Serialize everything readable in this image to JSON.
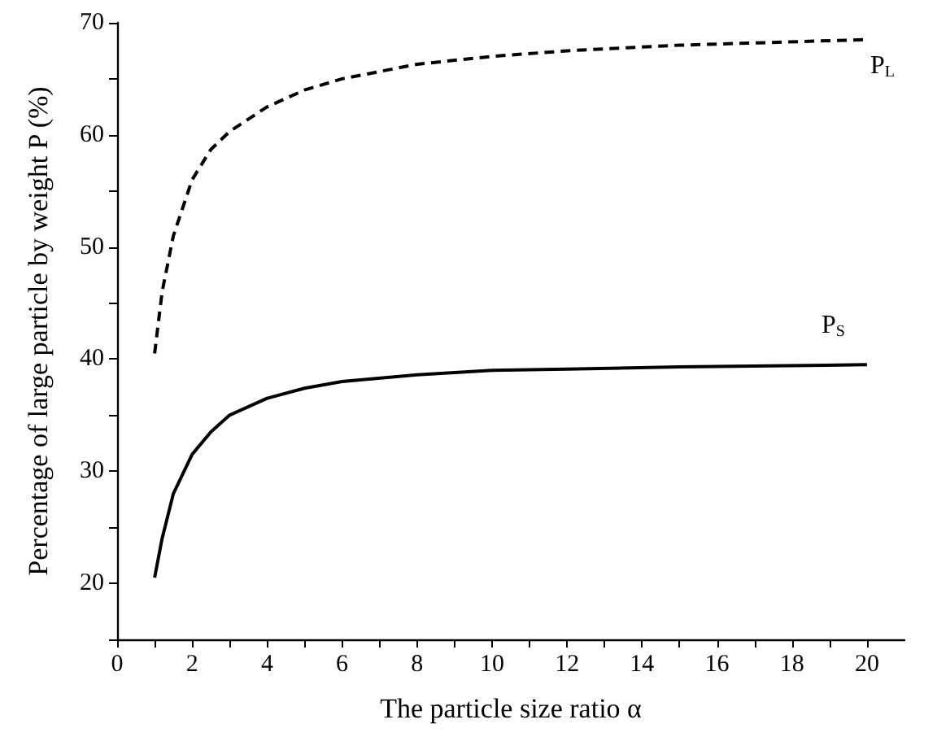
{
  "chart_data": {
    "type": "line",
    "xlabel": "The particle size ratio α",
    "ylabel": "Percentage of large particle by weight P (%)",
    "xlim": [
      0,
      21
    ],
    "ylim": [
      15,
      70
    ],
    "xticks": [
      0,
      {
        "value": 1,
        "label": null
      },
      2,
      {
        "value": 3,
        "label": null
      },
      4,
      {
        "value": 5,
        "label": null
      },
      6,
      {
        "value": 7,
        "label": null
      },
      8,
      {
        "value": 9,
        "label": null
      },
      10,
      {
        "value": 11,
        "label": null
      },
      12,
      {
        "value": 13,
        "label": null
      },
      14,
      {
        "value": 15,
        "label": null
      },
      16,
      {
        "value": 17,
        "label": null
      },
      18,
      {
        "value": 19,
        "label": null
      },
      20
    ],
    "yticks": [
      {
        "value": 15,
        "label": null
      },
      20,
      {
        "value": 25,
        "label": null
      },
      30,
      {
        "value": 35,
        "label": null
      },
      40,
      {
        "value": 45,
        "label": null
      },
      50,
      {
        "value": 55,
        "label": null
      },
      60,
      {
        "value": 65,
        "label": null
      },
      70
    ],
    "grid": false,
    "marker": "none",
    "series": [
      {
        "name": "P$_{L}$",
        "color": "#000000",
        "line_style": "dashed",
        "x": [
          1,
          1.2,
          1.5,
          2,
          2.5,
          3,
          4,
          5,
          6,
          8,
          10,
          12,
          15,
          20
        ],
        "values": [
          40.5,
          46,
          51,
          56,
          58.7,
          60.3,
          62.5,
          64,
          65,
          66.3,
          67,
          67.5,
          68,
          68.5
        ]
      },
      {
        "name": "P$_{S}$",
        "color": "#000000",
        "line_style": "solid",
        "x": [
          1,
          1.2,
          1.5,
          2,
          2.5,
          3,
          4,
          5,
          6,
          8,
          10,
          12,
          15,
          20
        ],
        "values": [
          20.5,
          24,
          28,
          31.5,
          33.5,
          35,
          36.5,
          37.4,
          38,
          38.6,
          39,
          39.1,
          39.3,
          39.5
        ]
      }
    ]
  }
}
